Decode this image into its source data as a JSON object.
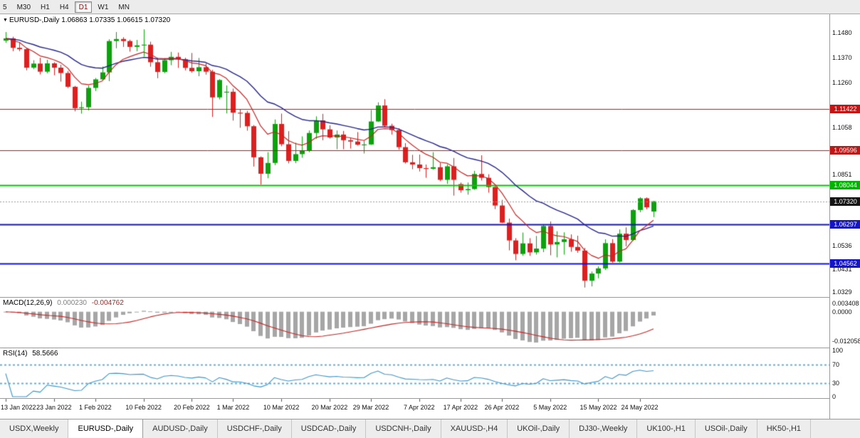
{
  "toolbar": {
    "timeframes": [
      {
        "label": "5",
        "selected": false
      },
      {
        "label": "M30",
        "selected": false
      },
      {
        "label": "H1",
        "selected": false
      },
      {
        "label": "H4",
        "selected": false
      },
      {
        "label": "D1",
        "selected": true
      },
      {
        "label": "W1",
        "selected": false
      },
      {
        "label": "MN",
        "selected": false
      }
    ]
  },
  "chart_header": {
    "marker": "▼",
    "symbol": "EURUSD-,Daily",
    "ohlc": "1.06863 1.07335 1.06615 1.07320"
  },
  "price_axis": {
    "labels": [
      {
        "text": "1.1480",
        "price": 1.148
      },
      {
        "text": "1.1370",
        "price": 1.137
      },
      {
        "text": "1.1260",
        "price": 1.126
      },
      {
        "text": "1.1058",
        "price": 1.1058
      },
      {
        "text": "1.0851",
        "price": 1.0851
      },
      {
        "text": "1.0536",
        "price": 1.0536
      },
      {
        "text": "1.0431",
        "price": 1.0431
      },
      {
        "text": "1.0329",
        "price": 1.0329
      }
    ],
    "badges": [
      {
        "text": "1.11422",
        "price": 1.11422,
        "color": "#c41414",
        "current": false
      },
      {
        "text": "1.09596",
        "price": 1.09596,
        "color": "#c41414",
        "current": false
      },
      {
        "text": "1.08044",
        "price": 1.08044,
        "color": "#00b400",
        "current": false
      },
      {
        "text": "1.07320",
        "price": 1.0732,
        "color": "#141414",
        "current": true
      },
      {
        "text": "1.06297",
        "price": 1.06297,
        "color": "#1414c8",
        "current": false
      },
      {
        "text": "1.04562",
        "price": 1.04562,
        "color": "#1414c8",
        "current": false
      }
    ]
  },
  "indicators": {
    "macd": {
      "name": "MACD(12,26,9)",
      "main_value": "0.000230",
      "signal_value": "-0.004762",
      "axis_labels": [
        {
          "text": "0.003408",
          "value": 0.003408
        },
        {
          "text": "0.0000",
          "value": 0
        },
        {
          "text": "-0.012058",
          "value": -0.012058
        }
      ]
    },
    "rsi": {
      "name": "RSI(14)",
      "value": "58.5666",
      "levels": [
        70,
        30
      ],
      "axis_labels": [
        {
          "text": "100",
          "value": 100
        },
        {
          "text": "70",
          "value": 70
        },
        {
          "text": "30",
          "value": 30
        },
        {
          "text": "0",
          "value": 0
        }
      ]
    }
  },
  "tabs": [
    {
      "label": "USDX,Weekly",
      "active": false
    },
    {
      "label": "EURUSD-,Daily",
      "active": true
    },
    {
      "label": "AUDUSD-,Daily",
      "active": false
    },
    {
      "label": "USDCHF-,Daily",
      "active": false
    },
    {
      "label": "USDCAD-,Daily",
      "active": false
    },
    {
      "label": "USDCNH-,Daily",
      "active": false
    },
    {
      "label": "XAUUSD-,H4",
      "active": false
    },
    {
      "label": "UKOil-,Daily",
      "active": false
    },
    {
      "label": "DJ30-,Weekly",
      "active": false
    },
    {
      "label": "UK100-,H1",
      "active": false
    },
    {
      "label": "USOil-,Daily",
      "active": false
    },
    {
      "label": "HK50-,H1",
      "active": false
    }
  ],
  "chart_data": {
    "type": "candlestick",
    "symbol": "EURUSD",
    "timeframe": "Daily",
    "title": "EURUSD-,Daily",
    "current_ohlc": {
      "open": 1.06863,
      "high": 1.07335,
      "low": 1.06615,
      "close": 1.0732
    },
    "y_range": [
      1.0307,
      1.1562
    ],
    "macd_range": [
      -0.0148,
      0.0058
    ],
    "bid_price": 1.0732,
    "colors": {
      "up": "#0ea10e",
      "down": "#dc2020",
      "ma_fast": "#cc2222",
      "ma_slow": "#26268e",
      "macd_bar": "#a6a6a6",
      "macd_signal": "#cc2222",
      "rsi_line": "#3f96c9",
      "rsi_level": "#6faccf",
      "bid_line": "#999999"
    },
    "hlines": [
      {
        "price": 1.11422,
        "color": "#c41414",
        "width": 1
      },
      {
        "price": 1.09596,
        "color": "#c41414",
        "width": 1
      },
      {
        "price": 1.08044,
        "color": "#00c800",
        "width": 2
      },
      {
        "price": 1.06297,
        "color": "#1414c8",
        "width": 2
      },
      {
        "price": 1.04562,
        "color": "#1414c8",
        "width": 2
      }
    ],
    "ma": [
      {
        "period": 8,
        "method": "ema",
        "role": "fast"
      },
      {
        "period": 21,
        "method": "ema",
        "role": "slow"
      }
    ],
    "date_ticks": [
      {
        "label": "13 Jan 2022",
        "index": 0
      },
      {
        "label": "23 Jan 2022",
        "index": 7
      },
      {
        "label": "1 Feb 2022",
        "index": 13
      },
      {
        "label": "10 Feb 2022",
        "index": 20
      },
      {
        "label": "20 Feb 2022",
        "index": 27
      },
      {
        "label": "1 Mar 2022",
        "index": 33
      },
      {
        "label": "10 Mar 2022",
        "index": 40
      },
      {
        "label": "20 Mar 2022",
        "index": 47
      },
      {
        "label": "29 Mar 2022",
        "index": 53
      },
      {
        "label": "7 Apr 2022",
        "index": 60
      },
      {
        "label": "17 Apr 2022",
        "index": 66
      },
      {
        "label": "26 Apr 2022",
        "index": 72
      },
      {
        "label": "5 May 2022",
        "index": 79
      },
      {
        "label": "15 May 2022",
        "index": 86
      },
      {
        "label": "24 May 2022",
        "index": 92
      }
    ],
    "candles": [
      [
        1.1445,
        1.1483,
        1.1435,
        1.1455
      ],
      [
        1.1455,
        1.1462,
        1.1398,
        1.1413
      ],
      [
        1.1413,
        1.1436,
        1.1398,
        1.1407
      ],
      [
        1.1407,
        1.141,
        1.1313,
        1.1325
      ],
      [
        1.1325,
        1.1358,
        1.1318,
        1.1343
      ],
      [
        1.1343,
        1.1369,
        1.1295,
        1.1307
      ],
      [
        1.1307,
        1.136,
        1.13,
        1.1344
      ],
      [
        1.1344,
        1.1349,
        1.1291,
        1.1325
      ],
      [
        1.1325,
        1.1338,
        1.1263,
        1.1301
      ],
      [
        1.1301,
        1.131,
        1.1234,
        1.124
      ],
      [
        1.124,
        1.1244,
        1.1131,
        1.1145
      ],
      [
        1.1145,
        1.1174,
        1.1121,
        1.1149
      ],
      [
        1.1149,
        1.1246,
        1.1135,
        1.1235
      ],
      [
        1.1235,
        1.1279,
        1.1221,
        1.1273
      ],
      [
        1.1273,
        1.133,
        1.1267,
        1.1304
      ],
      [
        1.1304,
        1.1451,
        1.1265,
        1.1443
      ],
      [
        1.1443,
        1.1483,
        1.1411,
        1.1452
      ],
      [
        1.1452,
        1.146,
        1.1417,
        1.1443
      ],
      [
        1.1443,
        1.1449,
        1.1396,
        1.1417
      ],
      [
        1.1417,
        1.1448,
        1.1398,
        1.1424
      ],
      [
        1.1424,
        1.1495,
        1.1375,
        1.1427
      ],
      [
        1.1427,
        1.144,
        1.1329,
        1.1349
      ],
      [
        1.1349,
        1.1369,
        1.1278,
        1.1306
      ],
      [
        1.1306,
        1.1367,
        1.13,
        1.1358
      ],
      [
        1.1358,
        1.1395,
        1.1336,
        1.1373
      ],
      [
        1.1373,
        1.1392,
        1.1324,
        1.1362
      ],
      [
        1.1362,
        1.1369,
        1.1313,
        1.1324
      ],
      [
        1.1324,
        1.139,
        1.1302,
        1.1309
      ],
      [
        1.1309,
        1.1368,
        1.1287,
        1.1327
      ],
      [
        1.1327,
        1.1344,
        1.1294,
        1.1307
      ],
      [
        1.1307,
        1.1315,
        1.1106,
        1.1193
      ],
      [
        1.1193,
        1.1274,
        1.1184,
        1.127
      ],
      [
        1.1215,
        1.1246,
        1.1122,
        1.1218
      ],
      [
        1.1218,
        1.1232,
        1.109,
        1.1125
      ],
      [
        1.1125,
        1.1139,
        1.1058,
        1.1124
      ],
      [
        1.1124,
        1.1133,
        1.1045,
        1.1065
      ],
      [
        1.1065,
        1.107,
        1.0886,
        1.0927
      ],
      [
        1.0927,
        1.0931,
        1.0806,
        1.0854
      ],
      [
        1.0854,
        1.095,
        1.0834,
        1.0902
      ],
      [
        1.0902,
        1.1095,
        1.0892,
        1.1075
      ],
      [
        1.1075,
        1.1121,
        1.0976,
        1.0985
      ],
      [
        1.0985,
        1.1043,
        1.09,
        1.0911
      ],
      [
        1.0911,
        1.0992,
        1.0901,
        1.0941
      ],
      [
        1.0941,
        1.102,
        1.0925,
        1.0955
      ],
      [
        1.0955,
        1.1046,
        1.095,
        1.1035
      ],
      [
        1.1035,
        1.1109,
        1.1009,
        1.1091
      ],
      [
        1.1091,
        1.112,
        1.1003,
        1.1051
      ],
      [
        1.1051,
        1.1069,
        1.101,
        1.1015
      ],
      [
        1.1015,
        1.1046,
        1.0963,
        1.1028
      ],
      [
        1.1028,
        1.1044,
        1.0963,
        1.1003
      ],
      [
        1.1003,
        1.1014,
        1.0966,
        1.0997
      ],
      [
        1.0997,
        1.1039,
        1.0979,
        1.0983
      ],
      [
        1.0983,
        1.1,
        1.0944,
        1.0984
      ],
      [
        1.0984,
        1.1137,
        1.0982,
        1.1086
      ],
      [
        1.1086,
        1.1171,
        1.1084,
        1.1157
      ],
      [
        1.1157,
        1.1185,
        1.1061,
        1.1067
      ],
      [
        1.1067,
        1.1076,
        1.1028,
        1.1048
      ],
      [
        1.1048,
        1.1056,
        1.0961,
        1.0972
      ],
      [
        1.0972,
        1.099,
        1.0899,
        1.0905
      ],
      [
        1.0905,
        1.0938,
        1.0874,
        1.0895
      ],
      [
        1.0895,
        1.0939,
        1.0864,
        1.0879
      ],
      [
        1.0879,
        1.0895,
        1.0836,
        1.0876
      ],
      [
        1.0876,
        1.095,
        1.0872,
        1.0883
      ],
      [
        1.0883,
        1.0904,
        1.0821,
        1.0827
      ],
      [
        1.0827,
        1.0896,
        1.0809,
        1.0887
      ],
      [
        1.0887,
        1.0924,
        1.0757,
        1.0827
      ],
      [
        1.0808,
        1.0815,
        1.077,
        1.0781
      ],
      [
        1.0781,
        1.0815,
        1.0761,
        1.0786
      ],
      [
        1.0786,
        1.0867,
        1.0783,
        1.0853
      ],
      [
        1.0853,
        1.0936,
        1.0824,
        1.0836
      ],
      [
        1.0836,
        1.0852,
        1.077,
        1.0795
      ],
      [
        1.0795,
        1.08,
        1.0697,
        1.0713
      ],
      [
        1.0713,
        1.0738,
        1.0635,
        1.0637
      ],
      [
        1.0637,
        1.0655,
        1.0514,
        1.0558
      ],
      [
        1.0558,
        1.0568,
        1.047,
        1.0498
      ],
      [
        1.0498,
        1.0593,
        1.049,
        1.0545
      ],
      [
        1.0545,
        1.0568,
        1.049,
        1.0505
      ],
      [
        1.0505,
        1.0578,
        1.0495,
        1.0522
      ],
      [
        1.0522,
        1.063,
        1.0506,
        1.0622
      ],
      [
        1.0622,
        1.0642,
        1.0492,
        1.054
      ],
      [
        1.054,
        1.0599,
        1.0483,
        1.0551
      ],
      [
        1.0551,
        1.0594,
        1.0495,
        1.0563
      ],
      [
        1.0563,
        1.0585,
        1.0508,
        1.0529
      ],
      [
        1.0529,
        1.0579,
        1.0503,
        1.0513
      ],
      [
        1.0513,
        1.0525,
        1.0349,
        1.0379
      ],
      [
        1.0379,
        1.042,
        1.0354,
        1.0411
      ],
      [
        1.0411,
        1.0443,
        1.039,
        1.0434
      ],
      [
        1.0434,
        1.0563,
        1.0427,
        1.0546
      ],
      [
        1.0546,
        1.0564,
        1.0459,
        1.0464
      ],
      [
        1.0464,
        1.0607,
        1.046,
        1.0588
      ],
      [
        1.0588,
        1.0616,
        1.0532,
        1.056
      ],
      [
        1.056,
        1.0697,
        1.0556,
        1.0693
      ],
      [
        1.0693,
        1.075,
        1.0683,
        1.0745
      ],
      [
        1.0745,
        1.0749,
        1.0696,
        1.0705
      ],
      [
        1.06863,
        1.07335,
        1.06615,
        1.0732
      ]
    ]
  }
}
